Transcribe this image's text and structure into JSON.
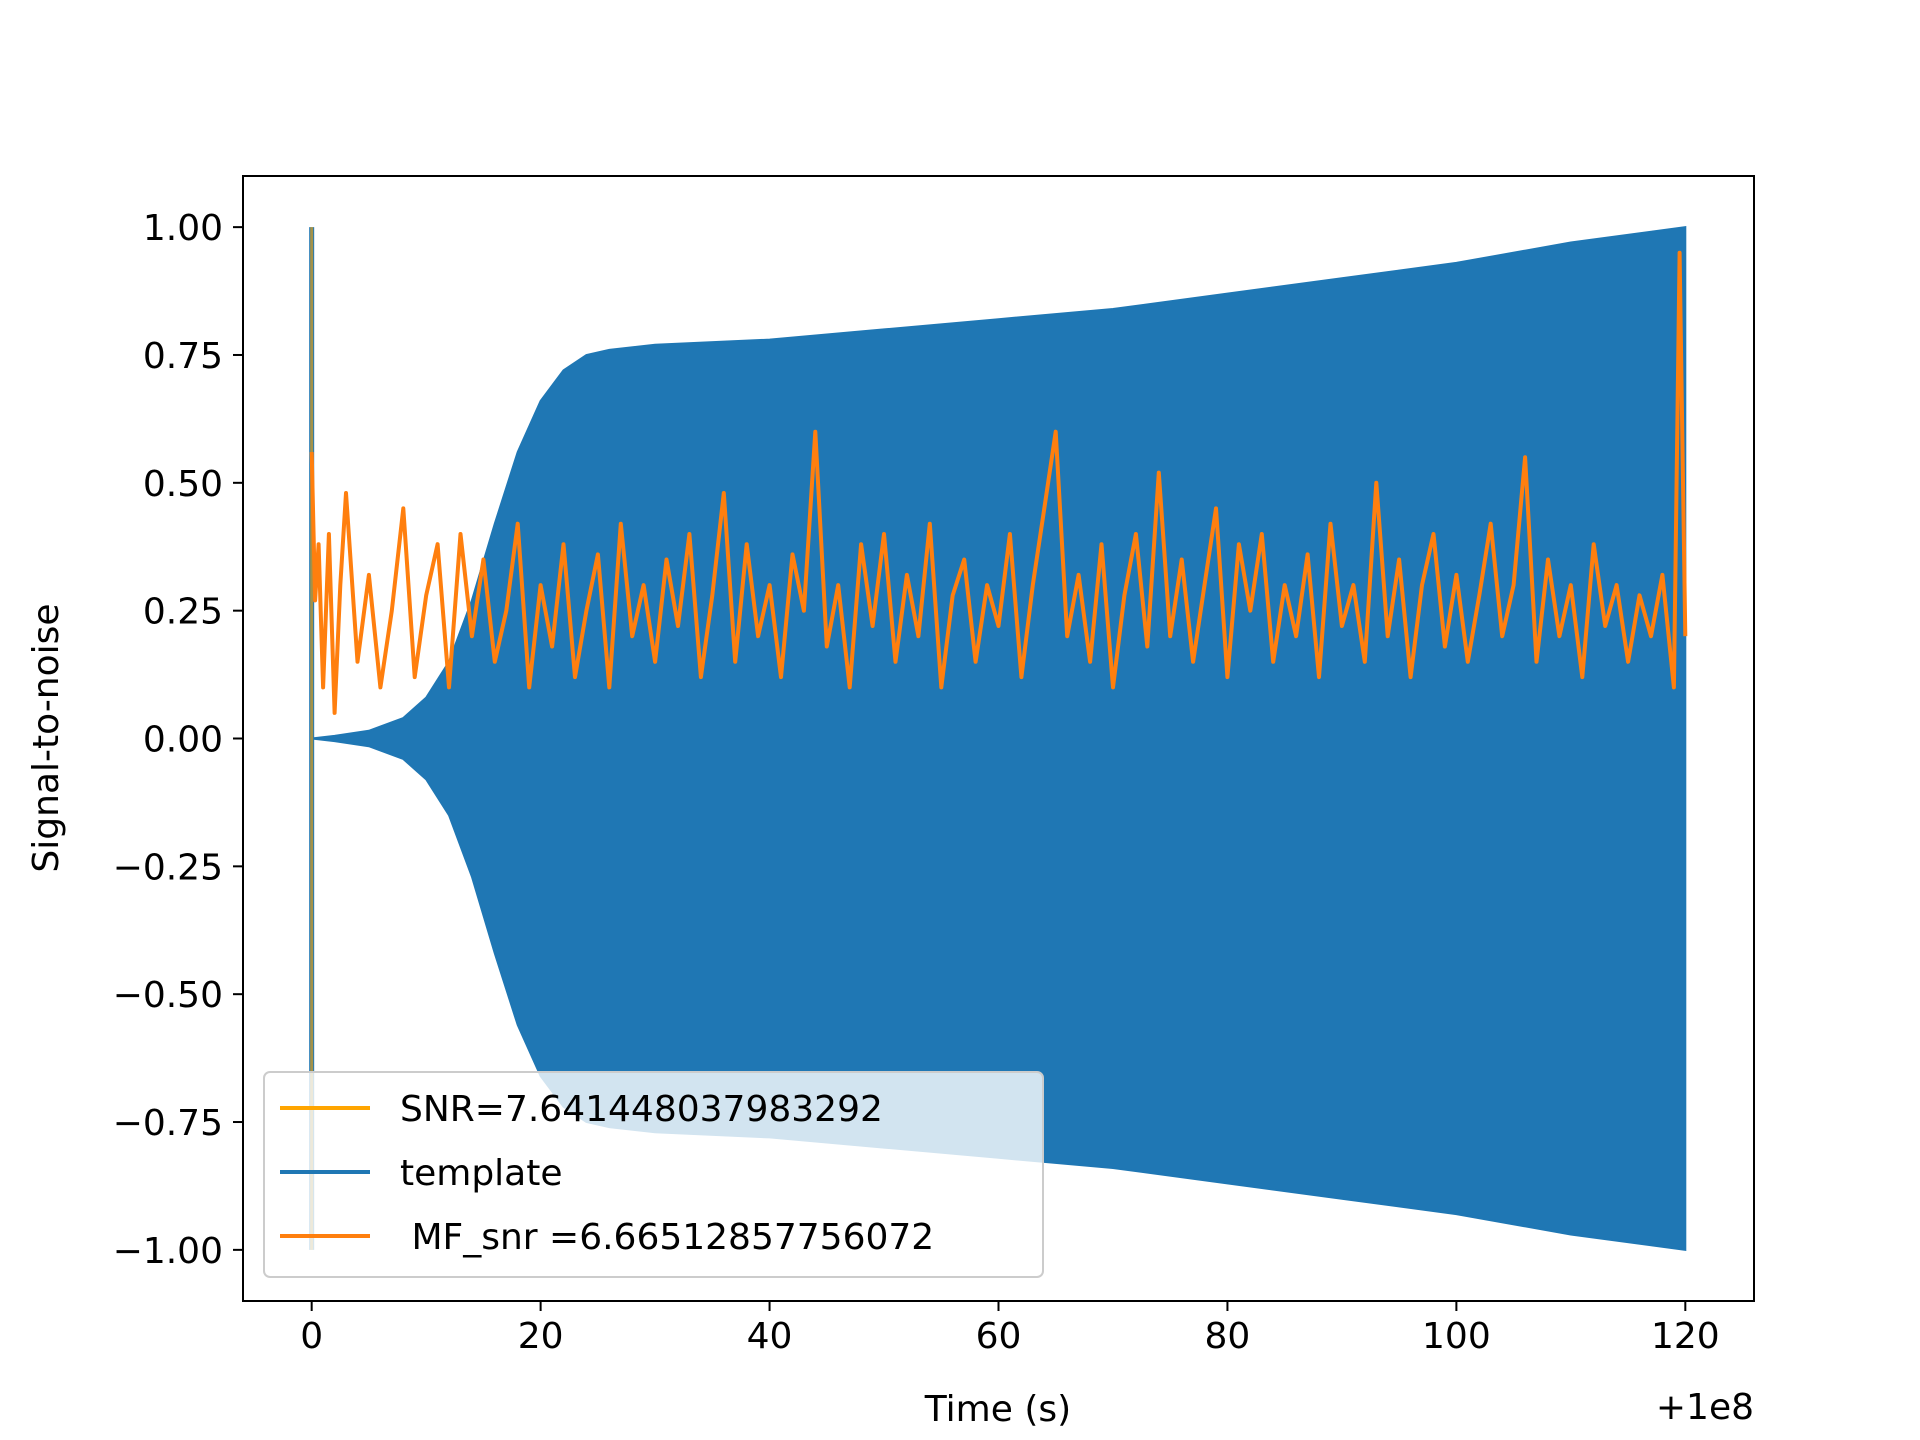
{
  "chart_data": {
    "type": "line",
    "xlabel": "Time (s)",
    "ylabel": "Signal-to-noise",
    "x_offset_label": "+1e8",
    "xlim": [
      -6,
      126
    ],
    "ylim": [
      -1.1,
      1.1
    ],
    "x_ticks": [
      0,
      20,
      40,
      60,
      80,
      100,
      120
    ],
    "x_tick_labels": [
      "0",
      "20",
      "40",
      "60",
      "80",
      "100",
      "120"
    ],
    "y_ticks": [
      1.0,
      0.75,
      0.5,
      0.25,
      0.0,
      -0.25,
      -0.5,
      -0.75,
      -1.0
    ],
    "y_tick_labels": [
      "1.00",
      "0.75",
      "0.50",
      "0.25",
      "0.00",
      "−0.25",
      "−0.50",
      "−0.75",
      "−1.00"
    ],
    "grid": false,
    "legend_placement": "lower-left",
    "series": [
      {
        "name": "SNR=7.641448037983292",
        "color": "#ffa500",
        "description": "vertical marker line at t=0 from -1.0 to 1.0",
        "x": [
          0,
          0
        ],
        "y": [
          -1.0,
          1.0
        ]
      },
      {
        "name": "template",
        "color": "#1f77b4",
        "description": "oscillating chirp template, amplitude envelope",
        "envelope_x": [
          0,
          2,
          5,
          8,
          10,
          12,
          14,
          16,
          18,
          20,
          22,
          24,
          26,
          30,
          40,
          50,
          60,
          70,
          80,
          90,
          100,
          110,
          120
        ],
        "envelope_upper": [
          0.0,
          0.005,
          0.015,
          0.04,
          0.08,
          0.15,
          0.27,
          0.42,
          0.56,
          0.66,
          0.72,
          0.75,
          0.76,
          0.77,
          0.78,
          0.8,
          0.82,
          0.84,
          0.87,
          0.9,
          0.93,
          0.97,
          1.0
        ],
        "envelope_lower": [
          0.0,
          -0.005,
          -0.015,
          -0.04,
          -0.08,
          -0.15,
          -0.27,
          -0.42,
          -0.56,
          -0.66,
          -0.72,
          -0.75,
          -0.76,
          -0.77,
          -0.78,
          -0.8,
          -0.82,
          -0.84,
          -0.87,
          -0.9,
          -0.93,
          -0.97,
          -1.0
        ]
      },
      {
        "name": " MF_snr =6.66512857756072",
        "color": "#ff7f0e",
        "description": "noisy matched-filter SNR time series",
        "x": [
          0,
          0.3,
          0.6,
          1,
          1.5,
          2,
          2.5,
          3,
          4,
          5,
          6,
          7,
          8,
          9,
          10,
          11,
          12,
          13,
          14,
          15,
          16,
          17,
          18,
          19,
          20,
          21,
          22,
          23,
          24,
          25,
          26,
          27,
          28,
          29,
          30,
          31,
          32,
          33,
          34,
          35,
          36,
          37,
          38,
          39,
          40,
          41,
          42,
          43,
          44,
          45,
          46,
          47,
          48,
          49,
          50,
          51,
          52,
          53,
          54,
          55,
          56,
          57,
          58,
          59,
          60,
          61,
          62,
          63,
          64,
          65,
          66,
          67,
          68,
          69,
          70,
          71,
          72,
          73,
          74,
          75,
          76,
          77,
          78,
          79,
          80,
          81,
          82,
          83,
          84,
          85,
          86,
          87,
          88,
          89,
          90,
          91,
          92,
          93,
          94,
          95,
          96,
          97,
          98,
          99,
          100,
          101,
          102,
          103,
          104,
          105,
          106,
          107,
          108,
          109,
          110,
          111,
          112,
          113,
          114,
          115,
          116,
          117,
          118,
          119,
          119.5,
          120
        ],
        "y": [
          0.56,
          0.27,
          0.38,
          0.1,
          0.4,
          0.05,
          0.3,
          0.48,
          0.15,
          0.32,
          0.1,
          0.25,
          0.45,
          0.12,
          0.28,
          0.38,
          0.1,
          0.4,
          0.2,
          0.35,
          0.15,
          0.25,
          0.42,
          0.1,
          0.3,
          0.18,
          0.38,
          0.12,
          0.25,
          0.36,
          0.1,
          0.42,
          0.2,
          0.3,
          0.15,
          0.35,
          0.22,
          0.4,
          0.12,
          0.28,
          0.48,
          0.15,
          0.38,
          0.2,
          0.3,
          0.12,
          0.36,
          0.25,
          0.6,
          0.18,
          0.3,
          0.1,
          0.38,
          0.22,
          0.4,
          0.15,
          0.32,
          0.2,
          0.42,
          0.1,
          0.28,
          0.35,
          0.15,
          0.3,
          0.22,
          0.4,
          0.12,
          0.3,
          0.45,
          0.6,
          0.2,
          0.32,
          0.15,
          0.38,
          0.1,
          0.28,
          0.4,
          0.18,
          0.52,
          0.2,
          0.35,
          0.15,
          0.3,
          0.45,
          0.12,
          0.38,
          0.25,
          0.4,
          0.15,
          0.3,
          0.2,
          0.36,
          0.12,
          0.42,
          0.22,
          0.3,
          0.15,
          0.5,
          0.2,
          0.35,
          0.12,
          0.3,
          0.4,
          0.18,
          0.32,
          0.15,
          0.28,
          0.42,
          0.2,
          0.3,
          0.55,
          0.15,
          0.35,
          0.2,
          0.3,
          0.12,
          0.38,
          0.22,
          0.3,
          0.15,
          0.28,
          0.2,
          0.32,
          0.1,
          0.95,
          0.2
        ]
      }
    ]
  }
}
